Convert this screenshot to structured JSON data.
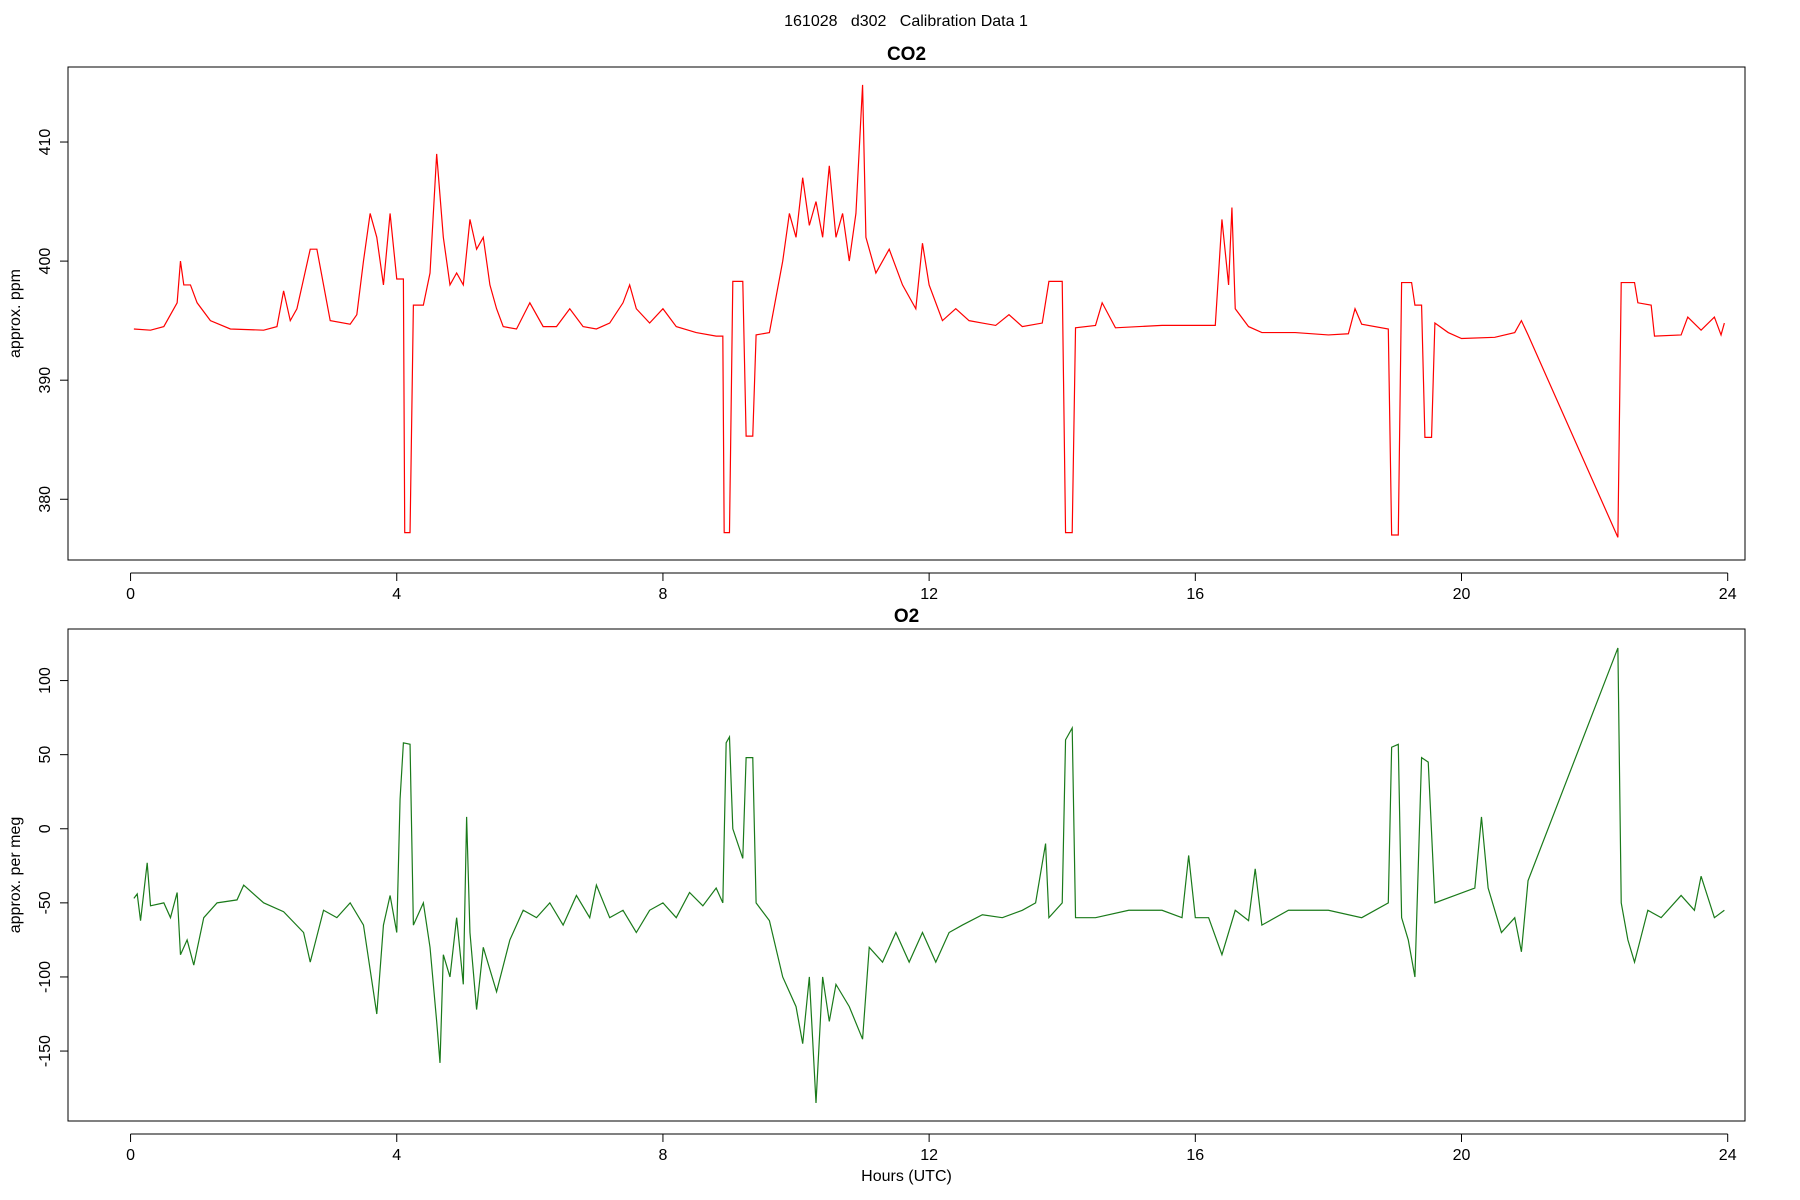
{
  "title": "161028   d302   Calibration Data 1",
  "chart_data": [
    {
      "type": "line",
      "title": "CO2",
      "ylabel": "approx. ppm",
      "x": [
        0.05,
        0.3,
        0.5,
        0.6,
        0.7,
        0.75,
        0.8,
        0.9,
        1.0,
        1.2,
        1.5,
        2.0,
        2.2,
        2.3,
        2.4,
        2.5,
        2.6,
        2.7,
        2.8,
        2.9,
        3.0,
        3.3,
        3.4,
        3.5,
        3.6,
        3.7,
        3.8,
        3.9,
        4.0,
        4.1,
        4.12,
        4.2,
        4.25,
        4.4,
        4.5,
        4.6,
        4.7,
        4.8,
        4.9,
        5.0,
        5.1,
        5.2,
        5.3,
        5.4,
        5.5,
        5.6,
        5.8,
        6.0,
        6.2,
        6.4,
        6.6,
        6.8,
        7.0,
        7.2,
        7.4,
        7.5,
        7.6,
        7.8,
        8.0,
        8.2,
        8.5,
        8.8,
        8.9,
        8.92,
        9.0,
        9.05,
        9.2,
        9.25,
        9.35,
        9.4,
        9.6,
        9.7,
        9.8,
        9.9,
        10.0,
        10.1,
        10.2,
        10.3,
        10.4,
        10.5,
        10.6,
        10.7,
        10.8,
        10.9,
        11.0,
        11.05,
        11.2,
        11.4,
        11.6,
        11.8,
        11.9,
        12.0,
        12.2,
        12.4,
        12.6,
        12.8,
        13.0,
        13.2,
        13.4,
        13.7,
        13.8,
        14.0,
        14.05,
        14.15,
        14.2,
        14.5,
        14.6,
        14.8,
        15.5,
        16.3,
        16.35,
        16.4,
        16.5,
        16.55,
        16.6,
        16.8,
        17.0,
        17.5,
        18.0,
        18.3,
        18.4,
        18.5,
        18.9,
        18.95,
        19.05,
        19.1,
        19.25,
        19.3,
        19.4,
        19.45,
        19.55,
        19.6,
        19.8,
        20.0,
        20.5,
        20.8,
        20.9,
        21.0,
        22.35,
        22.4,
        22.6,
        22.65,
        22.85,
        22.9,
        23.3,
        23.4,
        23.6,
        23.8,
        23.9,
        23.95
      ],
      "series": [
        {
          "color": "#ff0000",
          "values": [
            394.3,
            394.2,
            394.5,
            395.5,
            396.5,
            400,
            398,
            398,
            396.5,
            395,
            394.3,
            394.2,
            394.5,
            397.5,
            395,
            396,
            398.5,
            401,
            401,
            398,
            395,
            394.7,
            395.5,
            400,
            404,
            402,
            398,
            404,
            398.5,
            398.5,
            377.2,
            377.2,
            396.3,
            396.3,
            399,
            409,
            402,
            398,
            399,
            398,
            403.5,
            401,
            402,
            398,
            396,
            394.5,
            394.3,
            396.5,
            394.5,
            394.5,
            396,
            394.5,
            394.3,
            394.8,
            396.5,
            398,
            396,
            394.8,
            396,
            394.5,
            394,
            393.7,
            393.7,
            377.2,
            377.2,
            398.3,
            398.3,
            385.3,
            385.3,
            393.8,
            394,
            397,
            400,
            404,
            402,
            407,
            403,
            405,
            402,
            408,
            402,
            404,
            400,
            404,
            414.8,
            402,
            399,
            401,
            398,
            396,
            401.5,
            398,
            395,
            396,
            395,
            394.8,
            394.6,
            395.5,
            394.5,
            394.8,
            398.3,
            398.3,
            377.2,
            377.2,
            394.4,
            394.6,
            396.5,
            394.4,
            394.6,
            394.6,
            399,
            403.5,
            398,
            404.5,
            396,
            394.5,
            394,
            394,
            393.8,
            393.9,
            396,
            394.7,
            394.3,
            377,
            377,
            398.2,
            398.2,
            396.3,
            396.3,
            385.2,
            385.2,
            394.8,
            394,
            393.5,
            393.6,
            394,
            395,
            393.8,
            376.8,
            398.2,
            398.2,
            396.5,
            396.3,
            393.7,
            393.8,
            395.3,
            394.2,
            395.3,
            393.8,
            394.8
          ]
        }
      ],
      "xlim": [
        -0.94,
        24.26
      ],
      "ylim": [
        374.9,
        416.3
      ],
      "xticks": [
        0,
        4,
        8,
        12,
        16,
        20,
        24
      ],
      "yticks": [
        380,
        390,
        400,
        410
      ]
    },
    {
      "type": "line",
      "title": "O2",
      "ylabel": "approx. per meg",
      "xlabel": "Hours (UTC)",
      "x": [
        0.05,
        0.1,
        0.15,
        0.25,
        0.3,
        0.5,
        0.6,
        0.7,
        0.75,
        0.85,
        0.95,
        1.1,
        1.3,
        1.6,
        1.7,
        2.0,
        2.3,
        2.6,
        2.7,
        2.9,
        3.1,
        3.3,
        3.5,
        3.6,
        3.7,
        3.8,
        3.9,
        4.0,
        4.05,
        4.1,
        4.2,
        4.25,
        4.4,
        4.5,
        4.6,
        4.65,
        4.7,
        4.8,
        4.9,
        5.0,
        5.05,
        5.1,
        5.2,
        5.3,
        5.5,
        5.7,
        5.9,
        6.1,
        6.3,
        6.5,
        6.7,
        6.9,
        7.0,
        7.2,
        7.4,
        7.6,
        7.8,
        8.0,
        8.2,
        8.4,
        8.6,
        8.8,
        8.9,
        8.95,
        9.0,
        9.05,
        9.2,
        9.25,
        9.35,
        9.4,
        9.6,
        9.8,
        10.0,
        10.1,
        10.2,
        10.3,
        10.4,
        10.5,
        10.6,
        10.8,
        11.0,
        11.1,
        11.3,
        11.5,
        11.7,
        11.9,
        12.1,
        12.3,
        12.5,
        12.8,
        13.1,
        13.4,
        13.6,
        13.75,
        13.8,
        14.0,
        14.05,
        14.15,
        14.2,
        14.5,
        15.0,
        15.5,
        15.8,
        15.9,
        16.0,
        16.2,
        16.4,
        16.6,
        16.8,
        16.9,
        17.0,
        17.4,
        18.0,
        18.5,
        18.9,
        18.95,
        19.05,
        19.1,
        19.2,
        19.3,
        19.4,
        19.5,
        19.6,
        19.9,
        20.2,
        20.3,
        20.4,
        20.6,
        20.8,
        20.9,
        21.0,
        22.35,
        22.4,
        22.5,
        22.6,
        22.8,
        23.0,
        23.3,
        23.5,
        23.6,
        23.8,
        23.95
      ],
      "series": [
        {
          "color": "#1a7a1a",
          "values": [
            -47,
            -44,
            -62,
            -23,
            -52,
            -50,
            -60,
            -43,
            -85,
            -75,
            -92,
            -60,
            -50,
            -48,
            -38,
            -50,
            -56,
            -70,
            -90,
            -55,
            -60,
            -50,
            -65,
            -95,
            -125,
            -65,
            -45,
            -70,
            20,
            58,
            57,
            -65,
            -50,
            -80,
            -130,
            -158,
            -85,
            -100,
            -60,
            -105,
            8,
            -70,
            -122,
            -80,
            -110,
            -75,
            -55,
            -60,
            -50,
            -65,
            -45,
            -60,
            -38,
            -60,
            -55,
            -70,
            -55,
            -50,
            -60,
            -43,
            -52,
            -40,
            -50,
            58,
            62,
            0,
            -20,
            48,
            48,
            -50,
            -62,
            -100,
            -120,
            -145,
            -100,
            -185,
            -100,
            -130,
            -105,
            -120,
            -142,
            -80,
            -90,
            -70,
            -90,
            -70,
            -90,
            -70,
            -65,
            -58,
            -60,
            -55,
            -50,
            -10,
            -60,
            -50,
            60,
            68,
            -60,
            -60,
            -55,
            -55,
            -60,
            -18,
            -60,
            -60,
            -85,
            -55,
            -62,
            -27,
            -65,
            -55,
            -55,
            -60,
            -50,
            55,
            57,
            -60,
            -75,
            -100,
            48,
            45,
            -50,
            -45,
            -40,
            8,
            -40,
            -70,
            -60,
            -83,
            -35,
            122,
            -50,
            -75,
            -90,
            -55,
            -60,
            -45,
            -55,
            -32,
            -60,
            -55
          ]
        }
      ],
      "xlim": [
        -0.94,
        24.26
      ],
      "ylim": [
        -197.2,
        134.8
      ],
      "xticks": [
        0,
        4,
        8,
        12,
        16,
        20,
        24
      ],
      "yticks": [
        -150,
        -100,
        -50,
        0,
        50,
        100
      ]
    }
  ]
}
